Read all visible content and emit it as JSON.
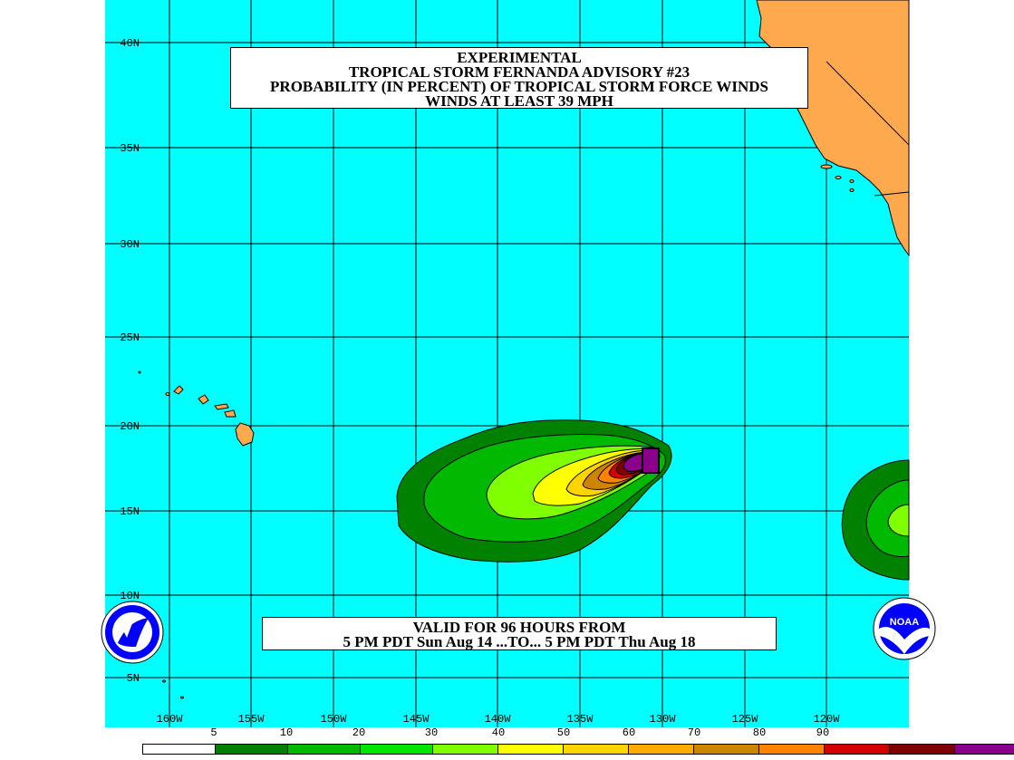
{
  "title": {
    "line1": "EXPERIMENTAL",
    "line2": "TROPICAL STORM FERNANDA ADVISORY #23",
    "line3": "PROBABILITY (IN PERCENT) OF TROPICAL STORM FORCE WINDS",
    "line4": "WINDS AT LEAST 39 MPH"
  },
  "valid": {
    "line1": "VALID FOR 96 HOURS FROM",
    "line2": "5 PM PDT Sun Aug 14 ...TO... 5 PM PDT Thu Aug 18"
  },
  "lat_labels": [
    "40N",
    "35N",
    "30N",
    "25N",
    "20N",
    "15N",
    "10N",
    "5N"
  ],
  "lon_labels": [
    "160W",
    "155W",
    "150W",
    "145W",
    "140W",
    "135W",
    "130W",
    "125W",
    "120W"
  ],
  "legend": {
    "labels": [
      "5",
      "10",
      "20",
      "30",
      "40",
      "50",
      "60",
      "70",
      "80",
      "90"
    ],
    "colors": [
      "#ffffff",
      "#008200",
      "#00b900",
      "#00e600",
      "#7fff00",
      "#ffff00",
      "#ffd400",
      "#ffaa00",
      "#cd8500",
      "#ff8200",
      "#d20000",
      "#800000",
      "#8b008b"
    ]
  },
  "colors": {
    "ocean": "#00ffff",
    "land": "#ffa94f"
  },
  "logos": {
    "nws": "nws-logo",
    "noaa": "noaa-logo",
    "noaa_text": "NOAA"
  }
}
